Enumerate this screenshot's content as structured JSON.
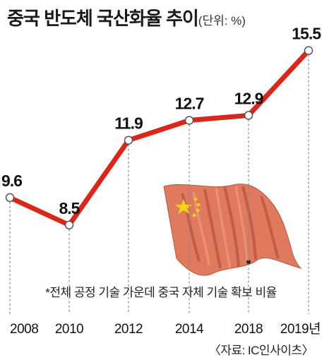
{
  "title": "중국 반도체 국산화율 추이",
  "unit": "(단위: %)",
  "note": "*전체 공정 기술 가운데 중국 자체 기술 확보 비율",
  "source": "〈자료: IC인사이츠〉",
  "colors": {
    "line": "#d8281c",
    "marker_fill": "#ffffff",
    "grid": "#888888",
    "flag": "#e07a5f"
  },
  "chart_data": {
    "type": "line",
    "title": "중국 반도체 국산화율 추이",
    "xlabel": "",
    "ylabel": "",
    "categories": [
      "2008",
      "2010",
      "2012",
      "2014",
      "2018",
      "2019년"
    ],
    "series": [
      {
        "values": [
          9.6,
          8.5,
          11.9,
          12.7,
          12.9,
          15.5
        ]
      }
    ],
    "value_labels": [
      "9.6",
      "8.5",
      "11.9",
      "12.7",
      "12.9",
      "15.5"
    ],
    "ylim": [
      6,
      16
    ],
    "grid": "dashed vertical drop lines",
    "legend": "none"
  }
}
